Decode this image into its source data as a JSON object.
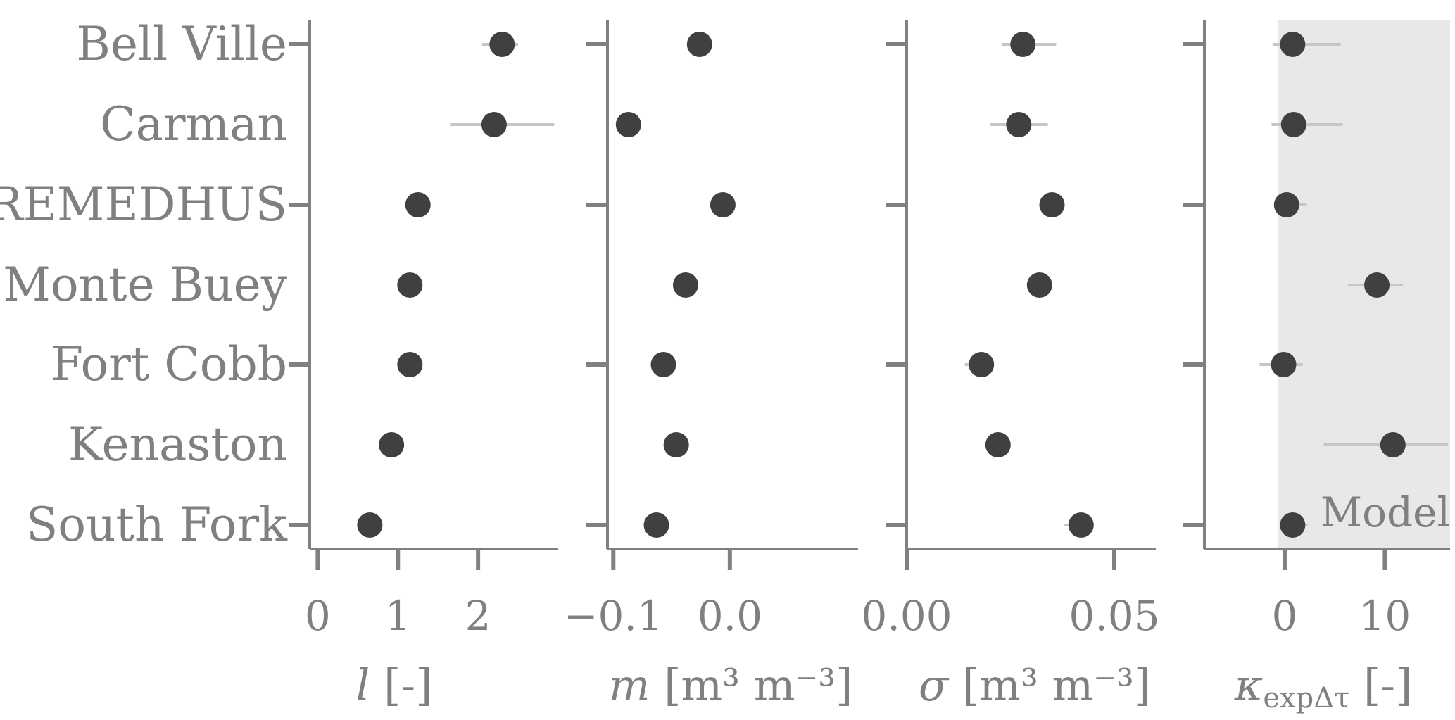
{
  "chart_data": {
    "type": "scatter",
    "categories": [
      "Bell Ville",
      "Carman",
      "REMEDHUS",
      "Monte Buey",
      "Fort Cobb",
      "Kenaston",
      "South Fork"
    ],
    "panels": [
      {
        "xlabel_var": "l",
        "xlabel_unit": " [-]",
        "xlim": [
          -0.1,
          3.0
        ],
        "xticks": [
          0,
          1,
          2
        ],
        "xtick_labels": [
          "0",
          "1",
          "2"
        ],
        "values": [
          2.3,
          2.2,
          1.25,
          1.15,
          1.15,
          0.92,
          0.65
        ],
        "err_low": [
          2.05,
          1.65,
          1.25,
          1.15,
          1.15,
          0.92,
          0.65
        ],
        "err_high": [
          2.5,
          2.95,
          1.25,
          1.15,
          1.15,
          0.92,
          0.65
        ]
      },
      {
        "xlabel_var": "m",
        "xlabel_unit": " [m³ m⁻³]",
        "xlim": [
          -0.105,
          0.11
        ],
        "xticks": [
          -0.1,
          0.0
        ],
        "xtick_labels": [
          "−0.1",
          "0.0"
        ],
        "values": [
          -0.026,
          -0.087,
          -0.006,
          -0.038,
          -0.057,
          -0.046,
          -0.063
        ],
        "err_low": [
          -0.026,
          -0.087,
          -0.006,
          -0.038,
          -0.057,
          -0.046,
          -0.063
        ],
        "err_high": [
          -0.026,
          -0.087,
          -0.006,
          -0.038,
          -0.057,
          -0.046,
          -0.063
        ]
      },
      {
        "xlabel_var": "σ",
        "xlabel_unit": " [m³ m⁻³]",
        "xlim": [
          0.0,
          0.06
        ],
        "xticks": [
          0.0,
          0.05
        ],
        "xtick_labels": [
          "0.00",
          "0.05"
        ],
        "values": [
          0.028,
          0.027,
          0.035,
          0.032,
          0.018,
          0.022,
          0.042
        ],
        "err_low": [
          0.023,
          0.02,
          0.035,
          0.03,
          0.014,
          0.022,
          0.038
        ],
        "err_high": [
          0.036,
          0.034,
          0.035,
          0.034,
          0.018,
          0.022,
          0.045
        ]
      },
      {
        "xlabel_var": "κ",
        "xlabel_sub": "expΔτ",
        "xlabel_unit": " [-]",
        "xlim": [
          -8,
          16.5
        ],
        "xticks": [
          0,
          10
        ],
        "xtick_labels": [
          "0",
          "10"
        ],
        "values": [
          0.8,
          0.9,
          0.2,
          9.2,
          -0.1,
          10.8,
          0.8
        ],
        "err_low": [
          -1.2,
          -1.3,
          -1.0,
          6.3,
          -2.5,
          3.9,
          0.8
        ],
        "err_high": [
          5.6,
          5.8,
          2.2,
          11.8,
          1.8,
          16.3,
          2.3
        ],
        "shaded_from": 0
      }
    ],
    "shaded_label": "Model"
  }
}
